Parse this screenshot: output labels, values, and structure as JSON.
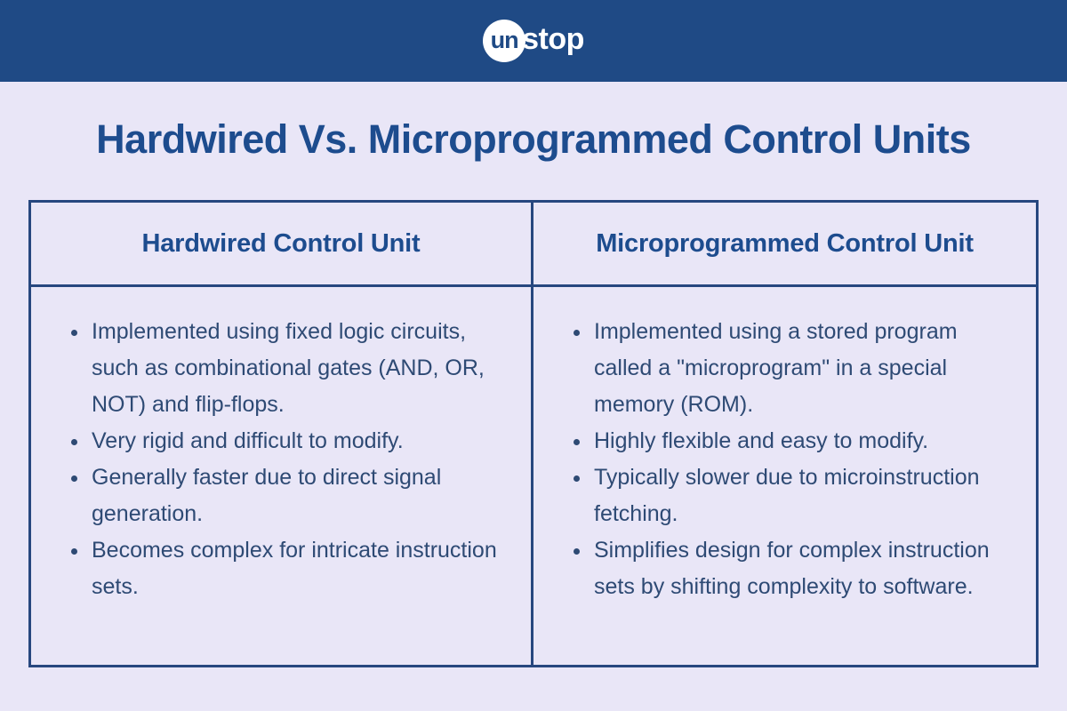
{
  "brand": {
    "logo_circle_text": "un",
    "logo_rest_text": "stop"
  },
  "title": "Hardwired Vs. Microprogrammed Control Units",
  "table": {
    "columns": [
      {
        "header": "Hardwired Control Unit",
        "bullets": [
          "Implemented using fixed logic circuits, such as combinational gates (AND, OR, NOT) and flip-flops.",
          "Very rigid and difficult to modify.",
          "Generally faster due to direct signal generation.",
          "Becomes complex for intricate instruction sets."
        ]
      },
      {
        "header": "Microprogrammed Control Unit",
        "bullets": [
          "Implemented using a stored program called a \"microprogram\" in a special memory (ROM).",
          "Highly flexible and easy to modify.",
          "Typically slower due to microinstruction fetching.",
          "Simplifies design for complex instruction sets by shifting complexity to software."
        ]
      }
    ]
  },
  "colors": {
    "header_bar": "#1f4a85",
    "background": "#e9e6f7",
    "title_text": "#1d4c8e",
    "body_text": "#2e4a74",
    "table_border": "#27477f",
    "logo_circle_bg": "#ffffff",
    "logo_text_on_circle": "#1f4a85",
    "logo_text": "#ffffff"
  }
}
